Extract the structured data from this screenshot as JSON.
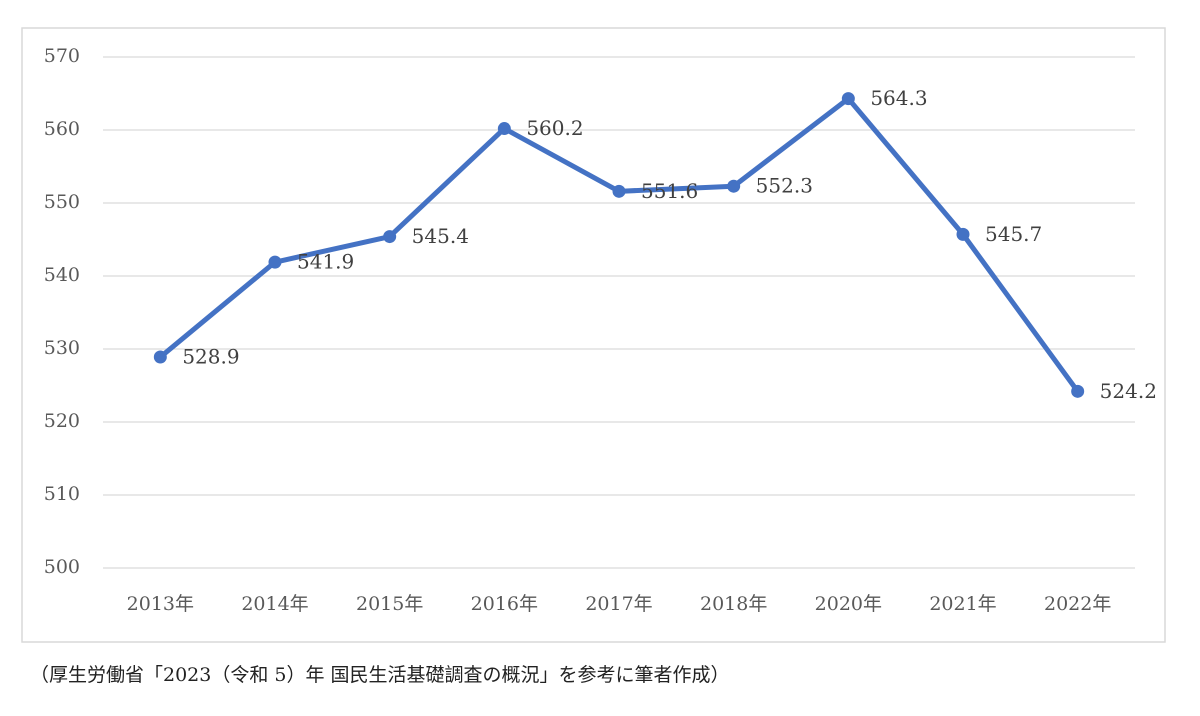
{
  "chart_data": {
    "type": "line",
    "categories": [
      "2013年",
      "2014年",
      "2015年",
      "2016年",
      "2017年",
      "2018年",
      "2020年",
      "2021年",
      "2022年"
    ],
    "values": [
      528.9,
      541.9,
      545.4,
      560.2,
      551.6,
      552.3,
      564.3,
      545.7,
      524.2
    ],
    "color": "#4472c4",
    "ylim": [
      500,
      570
    ],
    "yticks": [
      500,
      510,
      520,
      530,
      540,
      550,
      560,
      570
    ],
    "grid": true,
    "caption": "（厚生労働省「2023（令和 5）年 国民生活基礎調査の概況」を参考に筆者作成）"
  }
}
